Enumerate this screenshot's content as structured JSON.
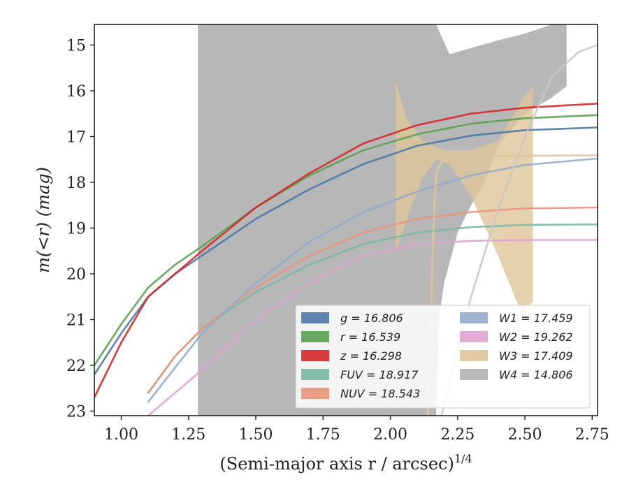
{
  "chart_data": {
    "type": "line",
    "xlabel": "(Semi-major axis r / arcsec)",
    "xlabel_sup": "1/4",
    "ylabel": "m(<r) (mag)",
    "xlim": [
      0.9,
      2.77
    ],
    "ylim": [
      23.1,
      14.55
    ],
    "y_inverted": true,
    "xticks": [
      "1.00",
      "1.25",
      "1.50",
      "1.75",
      "2.00",
      "2.25",
      "2.50",
      "2.75"
    ],
    "xtick_values": [
      1.0,
      1.25,
      1.5,
      1.75,
      2.0,
      2.25,
      2.5,
      2.75
    ],
    "yticks": [
      "15",
      "16",
      "17",
      "18",
      "19",
      "20",
      "21",
      "22",
      "23"
    ],
    "ytick_values": [
      15,
      16,
      17,
      18,
      19,
      20,
      21,
      22,
      23
    ],
    "grid": false,
    "legend_position": "lower-right",
    "series": [
      {
        "name": "g = 16.806",
        "color": "#4c78a8",
        "points": [
          [
            0.9,
            22.2
          ],
          [
            1.0,
            21.3
          ],
          [
            1.1,
            20.5
          ],
          [
            1.2,
            20.0
          ],
          [
            1.3,
            19.6
          ],
          [
            1.5,
            18.8
          ],
          [
            1.7,
            18.15
          ],
          [
            1.9,
            17.6
          ],
          [
            2.1,
            17.2
          ],
          [
            2.3,
            16.98
          ],
          [
            2.5,
            16.86
          ],
          [
            2.77,
            16.8
          ]
        ]
      },
      {
        "name": "r = 16.539",
        "color": "#59a14f",
        "points": [
          [
            0.9,
            22.0
          ],
          [
            1.0,
            21.1
          ],
          [
            1.1,
            20.3
          ],
          [
            1.2,
            19.8
          ],
          [
            1.3,
            19.4
          ],
          [
            1.5,
            18.55
          ],
          [
            1.7,
            17.85
          ],
          [
            1.9,
            17.3
          ],
          [
            2.1,
            16.95
          ],
          [
            2.3,
            16.72
          ],
          [
            2.5,
            16.6
          ],
          [
            2.77,
            16.53
          ]
        ]
      },
      {
        "name": "z = 16.298",
        "color": "#d62728",
        "points": [
          [
            0.9,
            22.7
          ],
          [
            1.0,
            21.5
          ],
          [
            1.1,
            20.5
          ],
          [
            1.2,
            20.0
          ],
          [
            1.3,
            19.5
          ],
          [
            1.5,
            18.55
          ],
          [
            1.7,
            17.8
          ],
          [
            1.9,
            17.15
          ],
          [
            2.1,
            16.75
          ],
          [
            2.3,
            16.5
          ],
          [
            2.5,
            16.37
          ],
          [
            2.77,
            16.28
          ]
        ]
      },
      {
        "name": "FUV = 18.917",
        "color": "#7ab8a6",
        "points": [
          [
            1.1,
            22.6
          ],
          [
            1.2,
            21.8
          ],
          [
            1.3,
            21.2
          ],
          [
            1.5,
            20.4
          ],
          [
            1.7,
            19.8
          ],
          [
            1.9,
            19.35
          ],
          [
            2.1,
            19.1
          ],
          [
            2.3,
            18.98
          ],
          [
            2.5,
            18.93
          ],
          [
            2.77,
            18.92
          ]
        ]
      },
      {
        "name": "NUV = 18.543",
        "color": "#e8957a",
        "points": [
          [
            1.1,
            22.6
          ],
          [
            1.2,
            21.8
          ],
          [
            1.3,
            21.2
          ],
          [
            1.5,
            20.3
          ],
          [
            1.7,
            19.6
          ],
          [
            1.9,
            19.1
          ],
          [
            2.1,
            18.8
          ],
          [
            2.3,
            18.65
          ],
          [
            2.5,
            18.57
          ],
          [
            2.77,
            18.55
          ]
        ]
      },
      {
        "name": "W1 = 17.459",
        "color": "#96a8cc",
        "points": [
          [
            1.1,
            22.8
          ],
          [
            1.3,
            21.3
          ],
          [
            1.5,
            20.2
          ],
          [
            1.7,
            19.3
          ],
          [
            1.9,
            18.65
          ],
          [
            2.1,
            18.2
          ],
          [
            2.3,
            17.85
          ],
          [
            2.5,
            17.62
          ],
          [
            2.77,
            17.48
          ]
        ]
      },
      {
        "name": "W2 = 19.262",
        "color": "#e0a3cf",
        "points": [
          [
            1.1,
            23.1
          ],
          [
            1.3,
            22.1
          ],
          [
            1.5,
            21.0
          ],
          [
            1.7,
            20.2
          ],
          [
            1.9,
            19.6
          ],
          [
            2.1,
            19.35
          ],
          [
            2.3,
            19.28
          ],
          [
            2.5,
            19.26
          ],
          [
            2.77,
            19.26
          ]
        ]
      },
      {
        "name": "W3 = 17.409",
        "color": "#dfc49a",
        "points": [
          [
            2.14,
            23.1
          ],
          [
            2.16,
            19.0
          ],
          [
            2.17,
            17.8
          ],
          [
            2.2,
            17.45
          ],
          [
            2.5,
            17.42
          ],
          [
            2.77,
            17.41
          ]
        ]
      },
      {
        "name": "W4 = 14.806",
        "color": "#c8c8c8",
        "points": [
          [
            2.19,
            23.1
          ],
          [
            2.3,
            20.5
          ],
          [
            2.4,
            18.6
          ],
          [
            2.5,
            17.0
          ],
          [
            2.6,
            15.7
          ],
          [
            2.7,
            15.15
          ],
          [
            2.77,
            15.0
          ]
        ]
      }
    ],
    "bands": [
      {
        "name": "W4",
        "color": "#b3b3b3",
        "upper": [
          [
            1.285,
            14.55
          ],
          [
            2.17,
            14.55
          ],
          [
            2.22,
            15.2
          ],
          [
            2.28,
            15.1
          ],
          [
            2.4,
            14.9
          ],
          [
            2.5,
            14.75
          ],
          [
            2.6,
            14.55
          ],
          [
            2.655,
            14.5
          ]
        ],
        "lower": [
          [
            2.655,
            15.9
          ],
          [
            2.6,
            16.15
          ],
          [
            2.5,
            16.5
          ],
          [
            2.4,
            17.2
          ],
          [
            2.35,
            18.0
          ],
          [
            2.3,
            18.5
          ],
          [
            2.25,
            19.1
          ],
          [
            2.2,
            20.2
          ],
          [
            2.18,
            21.0
          ],
          [
            2.17,
            23.1
          ],
          [
            1.285,
            23.1
          ]
        ]
      },
      {
        "name": "W3",
        "color": "#e0c59a",
        "upper": [
          [
            2.02,
            15.8
          ],
          [
            2.06,
            16.6
          ],
          [
            2.12,
            17.1
          ],
          [
            2.2,
            17.3
          ],
          [
            2.3,
            17.3
          ],
          [
            2.4,
            17.1
          ],
          [
            2.5,
            16.1
          ],
          [
            2.53,
            15.9
          ]
        ],
        "lower": [
          [
            2.53,
            20.6
          ],
          [
            2.49,
            20.9
          ],
          [
            2.4,
            19.6
          ],
          [
            2.3,
            18.3
          ],
          [
            2.22,
            17.6
          ],
          [
            2.17,
            17.5
          ],
          [
            2.12,
            17.9
          ],
          [
            2.08,
            18.5
          ],
          [
            2.02,
            19.5
          ]
        ]
      }
    ],
    "legend": {
      "left_column": [
        "g = 16.806",
        "r = 16.539",
        "z = 16.298",
        "FUV = 18.917",
        "NUV = 18.543"
      ],
      "right_column": [
        "W1 = 17.459",
        "W2 = 19.262",
        "W3 = 17.409",
        "W4 = 14.806"
      ]
    }
  },
  "legend_colors": {
    "g": "#4c78a8",
    "r": "#59a14f",
    "z": "#d62728",
    "FUV": "#7ab8a6",
    "NUV": "#e8957a",
    "W1": "#96a8cc",
    "W2": "#e0a3cf",
    "W3": "#dfc49a",
    "W4": "#b3b3b3"
  }
}
